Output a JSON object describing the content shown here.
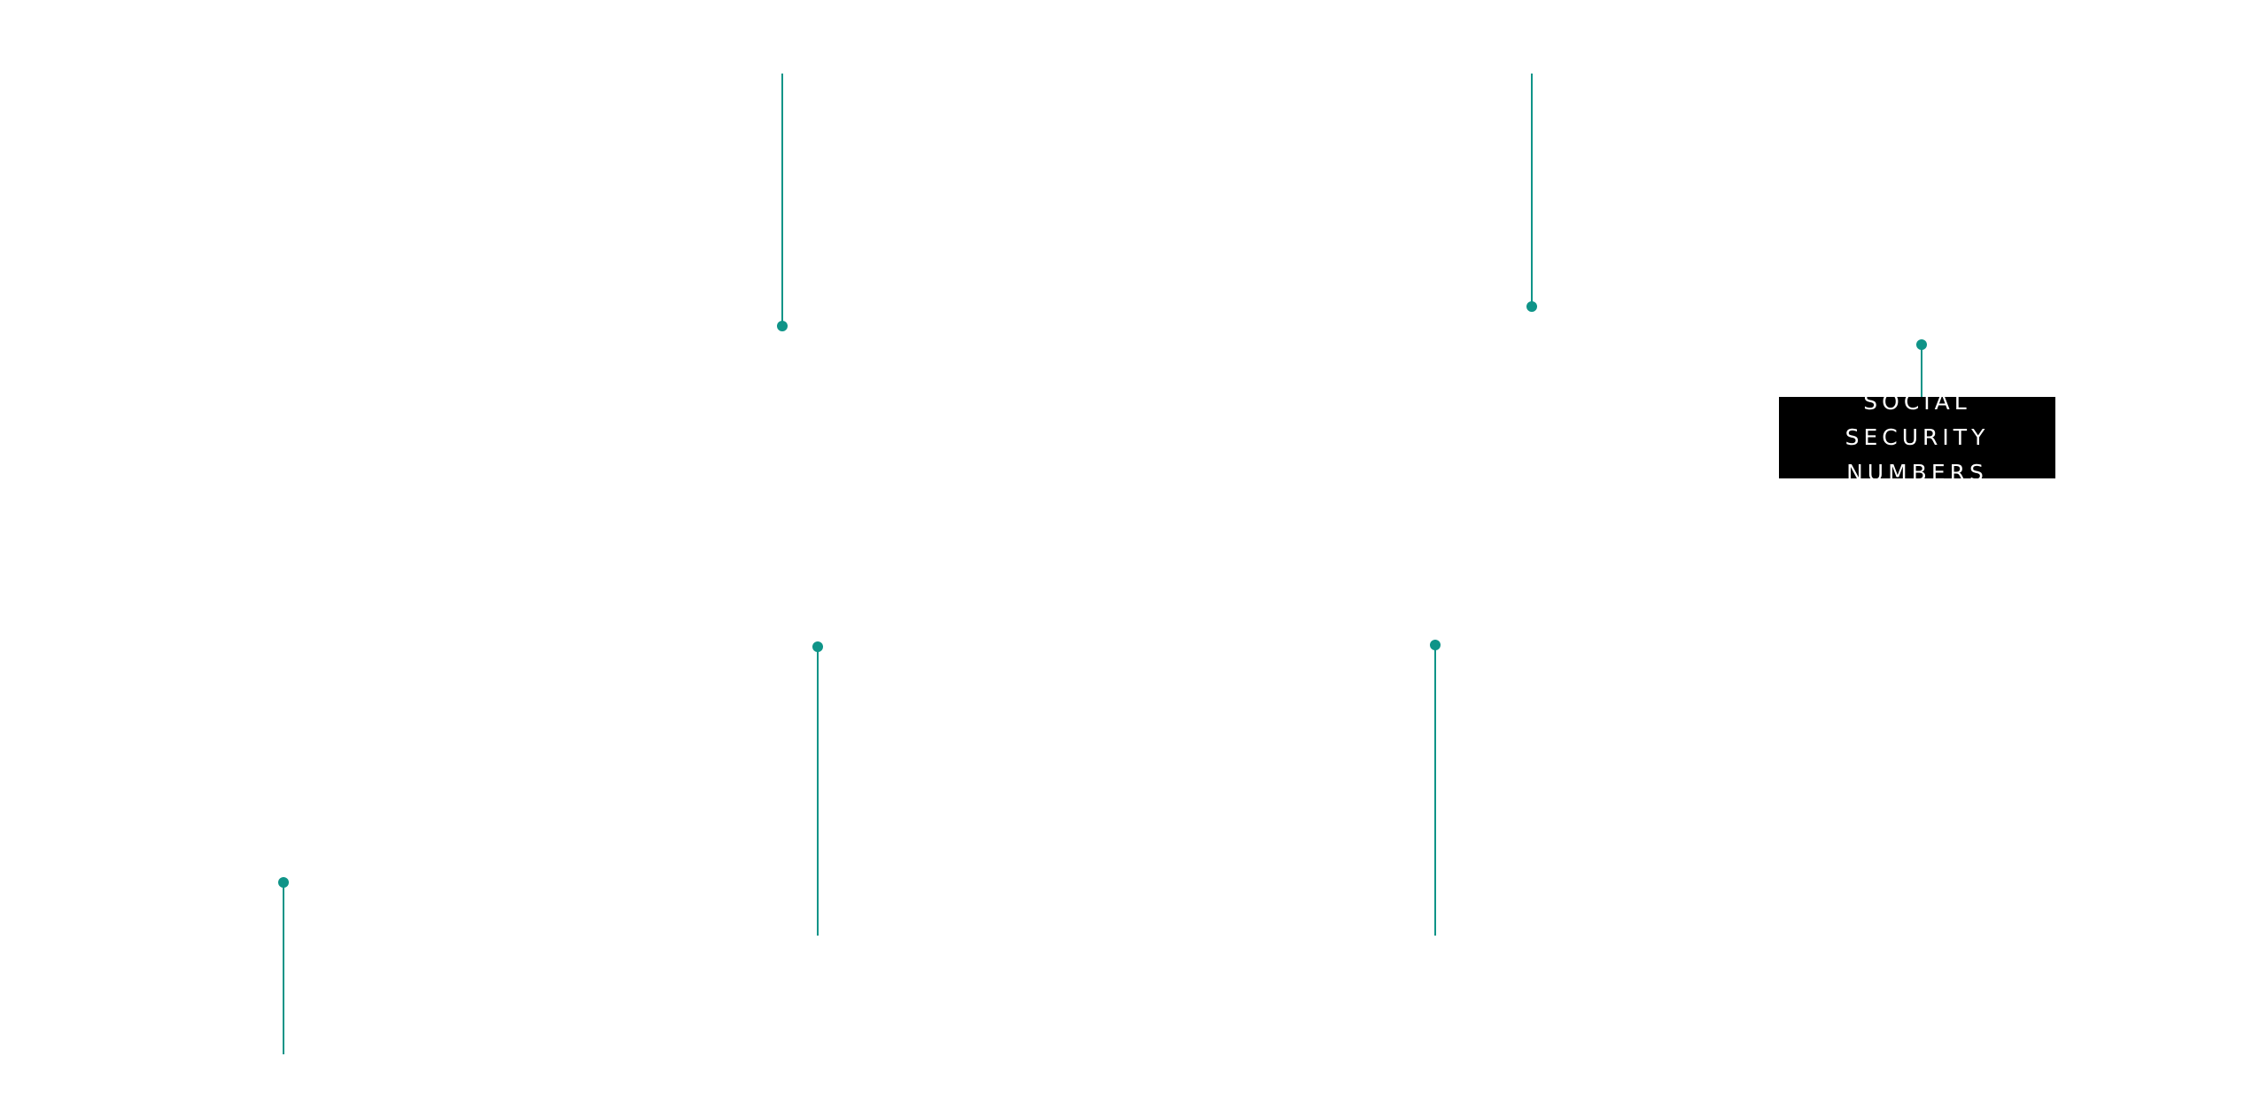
{
  "theme": {
    "accent": "#0f9488",
    "label_bg": "#000000",
    "label_fg": "#ffffff"
  },
  "callout": {
    "label": "SOCIAL SECURITY\nNUMBERS"
  }
}
